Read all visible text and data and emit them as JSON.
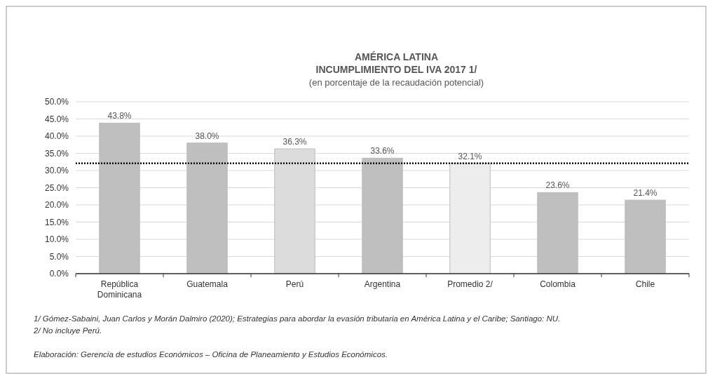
{
  "chart_data": {
    "type": "bar",
    "title": "AMÉRICA LATINA\nINCUMPLIMIENTO DEL IVA 2017 1/",
    "subtitle": "(en porcentaje de la recaudación potencial)",
    "categories": [
      "República Dominicana",
      "Guatemala",
      "Perú",
      "Argentina",
      "Promedio 2/",
      "Colombia",
      "Chile"
    ],
    "values": [
      43.8,
      38.0,
      36.3,
      33.6,
      32.1,
      23.6,
      21.4
    ],
    "value_labels": [
      "43.8%",
      "38.0%",
      "36.3%",
      "33.6%",
      "32.1%",
      "23.6%",
      "21.4%"
    ],
    "colors": [
      "#bfbfbf",
      "#bfbfbf",
      "#dcdcdc",
      "#bfbfbf",
      "#ededed",
      "#bfbfbf",
      "#bfbfbf"
    ],
    "ylim": [
      0,
      50
    ],
    "yticks": [
      {
        "value": 0,
        "label": "0.0%"
      },
      {
        "value": 5,
        "label": "5.0%"
      },
      {
        "value": 10,
        "label": "10.0%"
      },
      {
        "value": 15,
        "label": "15.0%"
      },
      {
        "value": 20,
        "label": "20.0%"
      },
      {
        "value": 25,
        "label": "25.0%"
      },
      {
        "value": 30,
        "label": "30.0%"
      },
      {
        "value": 35,
        "label": "35.0%"
      },
      {
        "value": 40,
        "label": "40.0%"
      },
      {
        "value": 45,
        "label": "45.0%"
      },
      {
        "value": 50,
        "label": "50.0%"
      }
    ],
    "grid": "y",
    "ref_lines": [
      {
        "axis": "y",
        "value": 32.1,
        "color": "#000000",
        "line_style": "dotted"
      }
    ],
    "annotations": [
      "1/ Gómez-Sabaini, Juan Carlos y Morán Dalmiro (2020); Estrategias para abordar la evasión tributaria en América Latina y el Caribe; Santiago: NU.",
      "2/ No incluye Perú.",
      "Elaboración: Gerencia de estudios Económicos – Oficina de Planeamiento y Estudios Económicos."
    ]
  }
}
